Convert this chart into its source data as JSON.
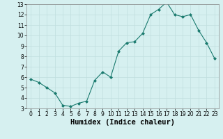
{
  "x": [
    0,
    1,
    2,
    3,
    4,
    5,
    6,
    7,
    8,
    9,
    10,
    11,
    12,
    13,
    14,
    15,
    16,
    17,
    18,
    19,
    20,
    21,
    22,
    23
  ],
  "y": [
    5.8,
    5.5,
    5.0,
    4.5,
    3.3,
    3.2,
    3.5,
    3.7,
    5.7,
    6.5,
    6.0,
    8.5,
    9.3,
    9.4,
    10.2,
    12.0,
    12.5,
    13.2,
    12.0,
    11.8,
    12.0,
    10.5,
    9.3,
    7.8
  ],
  "line_color": "#1a7a6e",
  "marker": "D",
  "marker_size": 2.0,
  "bg_color": "#d6f0f0",
  "grid_color": "#c0dede",
  "xlabel": "Humidex (Indice chaleur)",
  "xlim": [
    -0.5,
    23.5
  ],
  "ylim": [
    3,
    13
  ],
  "yticks": [
    3,
    4,
    5,
    6,
    7,
    8,
    9,
    10,
    11,
    12,
    13
  ],
  "xticks": [
    0,
    1,
    2,
    3,
    4,
    5,
    6,
    7,
    8,
    9,
    10,
    11,
    12,
    13,
    14,
    15,
    16,
    17,
    18,
    19,
    20,
    21,
    22,
    23
  ],
  "tick_labelsize": 5.5,
  "xlabel_fontsize": 7.5,
  "xlabel_fontweight": "bold"
}
